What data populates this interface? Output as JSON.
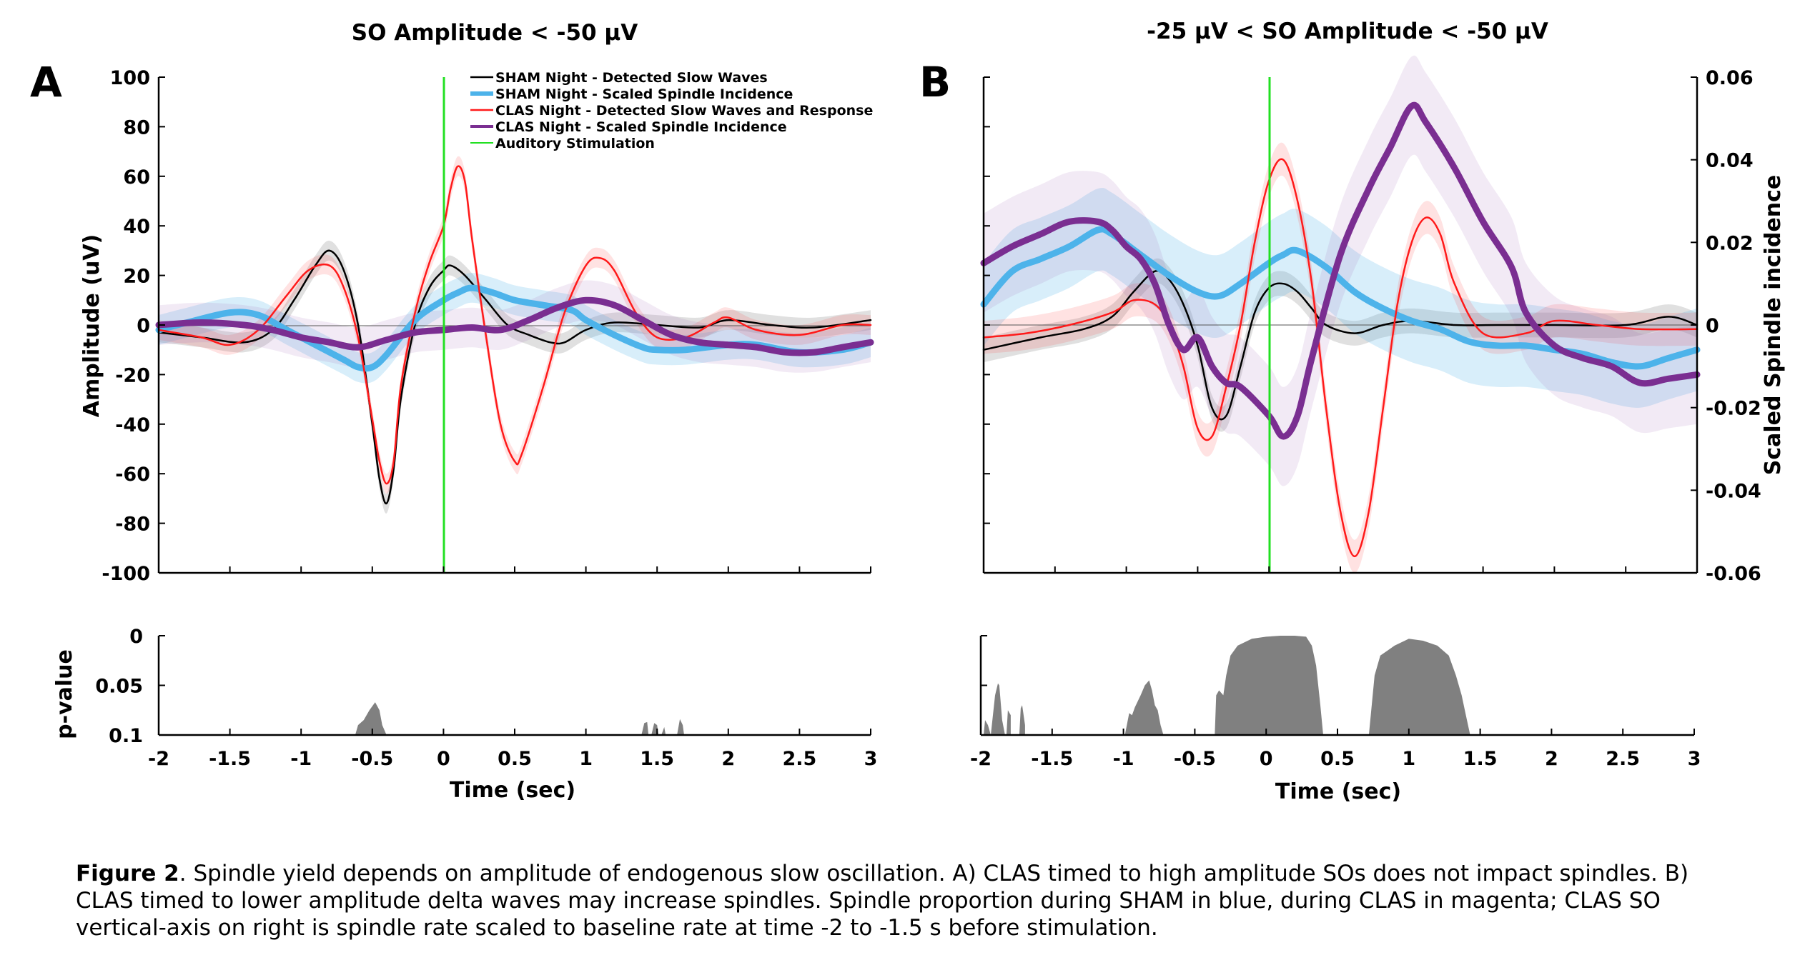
{
  "figure": {
    "caption_bold": "Figure 2",
    "caption_text": ". Spindle yield depends on amplitude of endogenous slow oscillation.  A) CLAS timed to high amplitude SOs does not impact spindles. B) CLAS timed to lower amplitude delta waves may increase spindles. Spindle proportion during SHAM in blue, during CLAS in magenta; CLAS SO vertical-axis on right is spindle rate scaled to baseline rate at time -2 to -1.5 s before stimulation."
  },
  "colors": {
    "sham_detected": "#000000",
    "sham_spindle": "#4db3ea",
    "clas_detected": "#ff1a1a",
    "clas_spindle": "#7a2e91",
    "stimulation": "#22e022",
    "pvalue_fill": "#808080"
  },
  "chart_data": [
    {
      "type": "line",
      "panel": "A",
      "title": "SO Amplitude < -50 μV",
      "xlabel": "Time (sec)",
      "ylabel": "Amplitude (uV)",
      "xlim": [
        -2,
        3
      ],
      "ylim": [
        -100,
        100
      ],
      "xticks": [
        "-2",
        "-1.5",
        "-1",
        "-0.5",
        "0",
        "0.5",
        "1",
        "1.5",
        "2",
        "2.5",
        "3"
      ],
      "yticks": [
        "100",
        "80",
        "60",
        "40",
        "20",
        "0",
        "-20",
        "-40",
        "-60",
        "-80",
        "-100"
      ],
      "legend": [
        "SHAM Night - Detected Slow Waves",
        "SHAM Night - Scaled Spindle Incidence",
        "CLAS Night - Detected Slow Waves and Response",
        "CLAS Night - Scaled Spindle Incidence",
        "Auditory Stimulation"
      ],
      "legend_position": "top-right",
      "stimulation_x": 0,
      "series": [
        {
          "key": "sham_detected",
          "x": [
            -2,
            -1.7,
            -1.4,
            -1.2,
            -1.05,
            -0.9,
            -0.8,
            -0.7,
            -0.6,
            -0.5,
            -0.45,
            -0.4,
            -0.35,
            -0.3,
            -0.2,
            -0.1,
            0,
            0.05,
            0.15,
            0.3,
            0.45,
            0.6,
            0.75,
            0.85,
            1,
            1.2,
            1.5,
            1.8,
            2,
            2.3,
            2.6,
            3
          ],
          "y": [
            -3,
            -5,
            -7,
            -2,
            10,
            24,
            30,
            22,
            0,
            -40,
            -62,
            -72,
            -58,
            -30,
            0,
            15,
            22,
            24,
            20,
            10,
            0,
            -4,
            -7,
            -7,
            -2,
            1,
            0,
            -1,
            2,
            0,
            -1,
            2
          ],
          "band": 4
        },
        {
          "key": "sham_spindle",
          "x": [
            -2,
            -1.8,
            -1.5,
            -1.3,
            -1.1,
            -0.9,
            -0.7,
            -0.6,
            -0.5,
            -0.4,
            -0.2,
            0,
            0.1,
            0.2,
            0.35,
            0.5,
            0.7,
            0.9,
            1,
            1.2,
            1.4,
            1.5,
            1.7,
            2,
            2.2,
            2.5,
            2.8,
            3
          ],
          "y": [
            -2,
            1,
            5,
            4,
            -2,
            -8,
            -14,
            -17,
            -17,
            -12,
            2,
            10,
            13,
            15,
            13,
            10,
            8,
            6,
            2,
            -4,
            -9,
            -10,
            -10,
            -8,
            -8,
            -11,
            -10,
            -7
          ],
          "band": 6
        },
        {
          "key": "clas_detected",
          "x": [
            -2,
            -1.7,
            -1.5,
            -1.3,
            -1.1,
            -0.95,
            -0.8,
            -0.7,
            -0.6,
            -0.5,
            -0.45,
            -0.4,
            -0.35,
            -0.3,
            -0.2,
            -0.1,
            0,
            0.05,
            0.1,
            0.15,
            0.2,
            0.3,
            0.4,
            0.5,
            0.55,
            0.7,
            0.85,
            1,
            1.1,
            1.2,
            1.35,
            1.5,
            1.7,
            1.9,
            2,
            2.2,
            2.5,
            2.8,
            3
          ],
          "y": [
            -2,
            -5,
            -8,
            -2,
            12,
            22,
            24,
            15,
            -5,
            -38,
            -55,
            -64,
            -55,
            -25,
            5,
            25,
            40,
            55,
            64,
            58,
            35,
            -5,
            -40,
            -55,
            -52,
            -25,
            5,
            24,
            27,
            22,
            5,
            -5,
            -5,
            1,
            3,
            -2,
            -4,
            0,
            0
          ],
          "band": 4
        },
        {
          "key": "clas_spindle",
          "x": [
            -2,
            -1.7,
            -1.4,
            -1.2,
            -1,
            -0.8,
            -0.6,
            -0.4,
            -0.2,
            0,
            0.2,
            0.4,
            0.6,
            0.8,
            1,
            1.2,
            1.4,
            1.6,
            1.8,
            2,
            2.2,
            2.4,
            2.6,
            2.8,
            3
          ],
          "y": [
            0,
            1,
            0,
            -2,
            -5,
            -7,
            -9,
            -6,
            -3,
            -2,
            -1,
            -2,
            2,
            7,
            10,
            8,
            2,
            -4,
            -7,
            -8,
            -9,
            -11,
            -11,
            -9,
            -7
          ],
          "band": 8
        }
      ]
    },
    {
      "type": "line",
      "panel": "B",
      "title": "-25 μV < SO Amplitude < -50 μV",
      "xlabel": "Time (sec)",
      "ylabel_right": "Scaled Spindle incidence",
      "xlim": [
        -2,
        3
      ],
      "ylim_right": [
        -0.06,
        0.06
      ],
      "xticks": [
        "-2",
        "-1.5",
        "-1",
        "-0.5",
        "0",
        "0.5",
        "1",
        "1.5",
        "2",
        "2.5",
        "3"
      ],
      "yticks_right": [
        "0.06",
        "0.04",
        "0.02",
        "0",
        "-0.02",
        "-0.04",
        "-0.06"
      ],
      "stimulation_x": 0,
      "series": [
        {
          "key": "sham_detected",
          "x": [
            -2,
            -1.6,
            -1.3,
            -1.1,
            -0.95,
            -0.8,
            -0.7,
            -0.6,
            -0.5,
            -0.4,
            -0.3,
            -0.2,
            -0.1,
            0,
            0.1,
            0.2,
            0.3,
            0.4,
            0.6,
            0.8,
            1,
            1.3,
            1.6,
            2,
            2.5,
            2.8,
            3
          ],
          "y": [
            -6,
            -3,
            -1,
            2,
            8,
            13,
            11,
            5,
            -5,
            -20,
            -22,
            -10,
            3,
            9,
            10,
            8,
            4,
            0,
            -2,
            0,
            1,
            0,
            0,
            0,
            0,
            2,
            0
          ],
          "band": 3
        },
        {
          "key": "sham_spindle",
          "x": [
            -2,
            -1.8,
            -1.6,
            -1.4,
            -1.2,
            -1.1,
            -0.9,
            -0.7,
            -0.5,
            -0.35,
            -0.2,
            0,
            0.1,
            0.2,
            0.4,
            0.6,
            0.8,
            1,
            1.2,
            1.4,
            1.6,
            1.8,
            2,
            2.2,
            2.4,
            2.6,
            2.8,
            3
          ],
          "y": [
            5,
            13,
            16,
            19,
            23,
            22,
            17,
            12,
            8,
            7,
            10,
            15,
            17,
            18,
            14,
            8,
            4,
            1,
            -1,
            -4,
            -5,
            -5,
            -6,
            -7,
            -9,
            -10,
            -8,
            -6
          ],
          "band": 10
        },
        {
          "key": "clas_detected",
          "x": [
            -2,
            -1.7,
            -1.4,
            -1.1,
            -0.95,
            -0.8,
            -0.7,
            -0.6,
            -0.5,
            -0.4,
            -0.3,
            -0.2,
            -0.1,
            0,
            0.1,
            0.2,
            0.3,
            0.4,
            0.5,
            0.6,
            0.7,
            0.8,
            0.9,
            1,
            1.1,
            1.2,
            1.3,
            1.5,
            1.8,
            2,
            2.3,
            2.6,
            3
          ],
          "y": [
            -3,
            -2,
            0,
            3,
            6,
            5,
            0,
            -10,
            -25,
            -27,
            -15,
            0,
            20,
            35,
            40,
            30,
            10,
            -20,
            -45,
            -56,
            -45,
            -20,
            5,
            20,
            26,
            22,
            10,
            -2,
            -2,
            1,
            0,
            -1,
            -1
          ],
          "band": 4
        },
        {
          "key": "clas_spindle",
          "x": [
            -2,
            -1.8,
            -1.6,
            -1.4,
            -1.2,
            -1.1,
            -1,
            -0.9,
            -0.8,
            -0.7,
            -0.6,
            -0.5,
            -0.4,
            -0.3,
            -0.2,
            0,
            0.1,
            0.2,
            0.3,
            0.5,
            0.7,
            0.85,
            1,
            1.1,
            1.3,
            1.5,
            1.7,
            1.8,
            2,
            2.2,
            2.4,
            2.6,
            2.8,
            3
          ],
          "y": [
            15,
            19,
            22,
            25,
            25,
            23,
            19,
            16,
            10,
            0,
            -6,
            -3,
            -10,
            -14,
            -15,
            -22,
            -27,
            -22,
            -8,
            17,
            33,
            43,
            53,
            49,
            38,
            25,
            14,
            3,
            -5,
            -8,
            -10,
            -14,
            -13,
            -12
          ],
          "band": 12
        }
      ]
    },
    {
      "type": "area",
      "panel": "A-pvalue",
      "ylabel": "p-value",
      "xlabel": "Time (sec)",
      "xlim": [
        -2,
        3
      ],
      "ylim": [
        0.1,
        0
      ],
      "yticks": [
        "0",
        "0.05",
        "0.1"
      ],
      "xticks": [
        "-2",
        "-1.5",
        "-1",
        "-0.5",
        "0",
        "0.5",
        "1",
        "1.5",
        "2",
        "2.5",
        "3"
      ],
      "x": [
        -0.62,
        -0.6,
        -0.56,
        -0.52,
        -0.48,
        -0.45,
        -0.43,
        -0.4,
        -0.4,
        1.39,
        1.41,
        1.43,
        1.44,
        1.46,
        1.48,
        1.5,
        1.51,
        1.53,
        1.55,
        1.56,
        1.64,
        1.66,
        1.68,
        1.69
      ],
      "y": [
        0.1,
        0.09,
        0.085,
        0.075,
        0.067,
        0.075,
        0.09,
        0.1,
        0.1,
        0.1,
        0.088,
        0.087,
        0.1,
        0.1,
        0.088,
        0.09,
        0.1,
        0.1,
        0.092,
        0.1,
        0.1,
        0.084,
        0.09,
        0.1
      ]
    },
    {
      "type": "area",
      "panel": "B-pvalue",
      "xlabel": "Time (sec)",
      "xlim": [
        -2,
        3
      ],
      "ylim": [
        0.1,
        0
      ],
      "xticks": [
        "-2",
        "-1.5",
        "-1",
        "-0.5",
        "0",
        "0.5",
        "1",
        "1.5",
        "2",
        "2.5",
        "3"
      ],
      "x": [
        -1.98,
        -1.97,
        -1.95,
        -1.93,
        -1.93,
        -1.9,
        -1.88,
        -1.87,
        -1.85,
        -1.83,
        -1.82,
        -1.81,
        -1.79,
        -1.79,
        -1.73,
        -1.72,
        -1.71,
        -1.69,
        -1.69,
        -0.99,
        -0.96,
        -0.94,
        -0.92,
        -0.88,
        -0.85,
        -0.82,
        -0.8,
        -0.78,
        -0.76,
        -0.74,
        -0.72,
        -0.72,
        -0.36,
        -0.35,
        -0.33,
        -0.3,
        -0.28,
        -0.25,
        -0.2,
        -0.1,
        0,
        0.1,
        0.2,
        0.28,
        0.32,
        0.35,
        0.38,
        0.4,
        0.4,
        0.72,
        0.74,
        0.76,
        0.8,
        0.85,
        0.9,
        1,
        1.1,
        1.2,
        1.28,
        1.33,
        1.37,
        1.4,
        1.43,
        1.43
      ],
      "y": [
        0.1,
        0.085,
        0.09,
        0.1,
        0.1,
        0.06,
        0.048,
        0.05,
        0.085,
        0.1,
        0.1,
        0.075,
        0.08,
        0.1,
        0.1,
        0.073,
        0.07,
        0.09,
        0.1,
        0.1,
        0.078,
        0.08,
        0.072,
        0.06,
        0.05,
        0.045,
        0.055,
        0.07,
        0.075,
        0.09,
        0.1,
        0.1,
        0.1,
        0.06,
        0.055,
        0.06,
        0.04,
        0.02,
        0.01,
        0.003,
        0.001,
        0,
        0,
        0.001,
        0.01,
        0.03,
        0.07,
        0.1,
        0.1,
        0.1,
        0.07,
        0.04,
        0.02,
        0.015,
        0.01,
        0.003,
        0.005,
        0.01,
        0.02,
        0.04,
        0.06,
        0.08,
        0.1,
        0.1
      ]
    }
  ]
}
